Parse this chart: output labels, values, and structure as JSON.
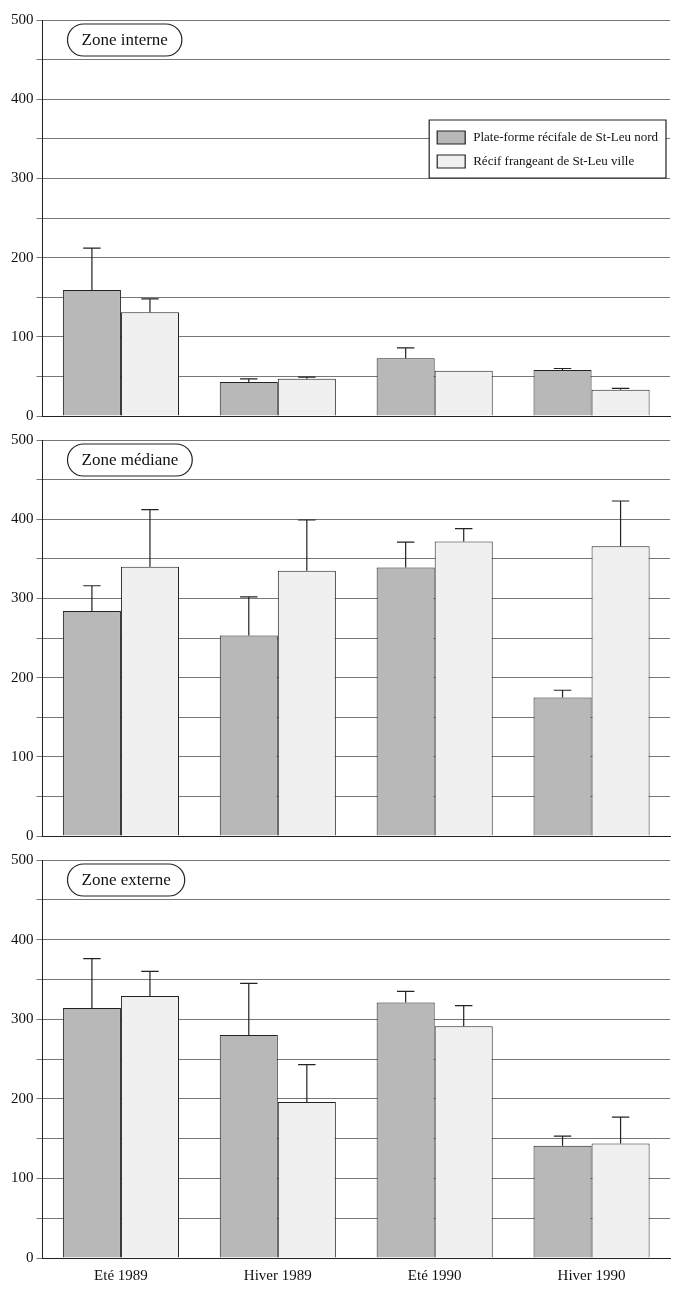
{
  "chart_data": [
    {
      "type": "bar",
      "title": "Zone interne",
      "categories": [
        null,
        null,
        null,
        null
      ],
      "ylim": [
        0,
        500
      ],
      "yticks": [
        0,
        {
          "value": 50,
          "label": null
        },
        100,
        {
          "value": 150,
          "label": null
        },
        200,
        {
          "value": 250,
          "label": null
        },
        300,
        {
          "value": 350,
          "label": null
        },
        400,
        {
          "value": 450,
          "label": null
        },
        500
      ],
      "grid": "y",
      "legend": "top right",
      "tick_labels": "y",
      "series": [
        {
          "name": "Plate-forme récifale de St-Leu nord",
          "color": "#b8b8b8",
          "values": [
            159,
            43,
            73,
            58
          ],
          "errors": [
            [
              159,
              212
            ],
            [
              43,
              47
            ],
            [
              73,
              86
            ],
            [
              58,
              60
            ]
          ]
        },
        {
          "name": "Récif frangeant de St-Leu ville",
          "color": "#f0f0f0",
          "values": [
            131,
            47,
            57,
            33
          ],
          "errors": [
            [
              131,
              148
            ],
            [
              47,
              49
            ],
            null,
            [
              33,
              35
            ]
          ]
        }
      ]
    },
    {
      "type": "bar",
      "title": "Zone médiane",
      "categories": [
        null,
        null,
        null,
        null
      ],
      "ylim": [
        0,
        500
      ],
      "yticks": [
        0,
        {
          "value": 50,
          "label": null
        },
        100,
        {
          "value": 150,
          "label": null
        },
        200,
        {
          "value": 250,
          "label": null
        },
        300,
        {
          "value": 350,
          "label": null
        },
        400,
        {
          "value": 450,
          "label": null
        },
        500
      ],
      "grid": "y",
      "legend": false,
      "tick_labels": "y",
      "series": [
        {
          "color": "#b8b8b8",
          "values": [
            284,
            253,
            339,
            175
          ],
          "errors": [
            [
              284,
              316
            ],
            [
              253,
              302
            ],
            [
              339,
              371
            ],
            [
              175,
              184
            ]
          ]
        },
        {
          "color": "#f0f0f0",
          "values": [
            340,
            335,
            372,
            366
          ],
          "errors": [
            [
              340,
              412
            ],
            [
              335,
              399
            ],
            [
              372,
              388
            ],
            [
              366,
              423
            ]
          ]
        }
      ]
    },
    {
      "type": "bar",
      "title": "Zone externe",
      "categories": [
        "Eté 1989",
        "Hiver 1989",
        "Eté 1990",
        "Hiver 1990"
      ],
      "ylim": [
        0,
        500
      ],
      "yticks": [
        0,
        {
          "value": 50,
          "label": null
        },
        100,
        {
          "value": 150,
          "label": null
        },
        200,
        {
          "value": 250,
          "label": null
        },
        300,
        {
          "value": 350,
          "label": null
        },
        400,
        {
          "value": 450,
          "label": null
        },
        500
      ],
      "grid": "y",
      "legend": false,
      "series": [
        {
          "color": "#b8b8b8",
          "values": [
            314,
            280,
            321,
            141
          ],
          "errors": [
            [
              314,
              376
            ],
            [
              280,
              345
            ],
            [
              321,
              335
            ],
            [
              141,
              153
            ]
          ]
        },
        {
          "color": "#f0f0f0",
          "values": [
            329,
            196,
            291,
            144
          ],
          "errors": [
            [
              329,
              360
            ],
            [
              196,
              243
            ],
            [
              291,
              317
            ],
            [
              144,
              177
            ]
          ]
        }
      ]
    }
  ]
}
